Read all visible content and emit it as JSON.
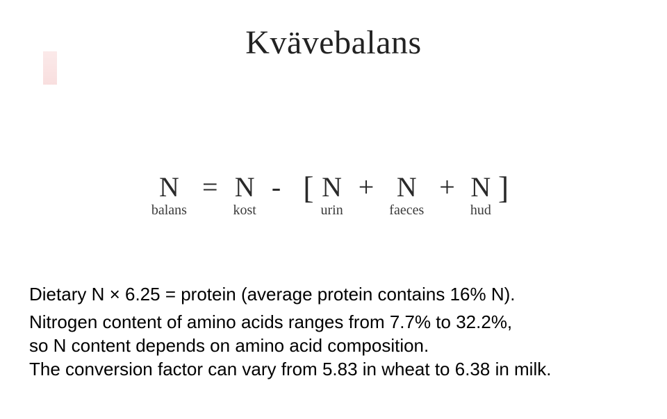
{
  "title": "Kvävebalans",
  "colors": {
    "background": "#ffffff",
    "text": "#000000",
    "equation_text": "#2a2a2a",
    "accent_bar_top": "#f8d8d8",
    "accent_bar_bottom": "#f3c4c4"
  },
  "equation": {
    "symbol": "N",
    "subs": {
      "balans": "balans",
      "kost": "kost",
      "urin": "urin",
      "faeces": "faeces",
      "hud": "hud"
    },
    "ops": {
      "eq": "=",
      "minus": "-",
      "plus1": "+",
      "plus2": "+"
    },
    "brackets": {
      "left": "[",
      "right": "]"
    },
    "font": {
      "symbol_size_pt": 40,
      "subscript_size_pt": 20,
      "family": "Times New Roman"
    }
  },
  "body": {
    "line1": "Dietary N × 6.25 = protein (average protein contains 16% N).",
    "line2": "Nitrogen content of amino acids ranges from 7.7% to 32.2%,",
    "line3": "so N content depends on amino acid composition.",
    "line4": "The conversion factor can vary from 5.83 in wheat to 6.38 in milk.",
    "font": {
      "family": "Verdana",
      "size_pt": 26
    }
  }
}
